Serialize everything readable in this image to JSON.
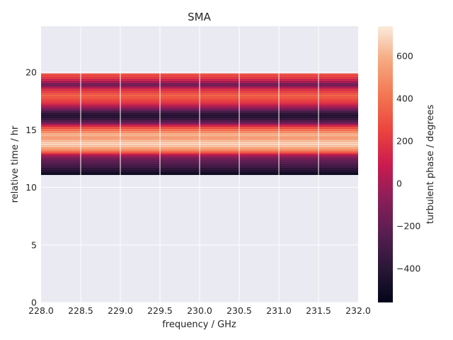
{
  "chart_data": {
    "type": "heatmap",
    "title": "SMA",
    "xlabel": "frequency / GHz",
    "ylabel": "relative time / hr",
    "colorbar_label": "turbulent phase / degrees",
    "xlim": [
      228.0,
      232.0
    ],
    "ylim": [
      0,
      24
    ],
    "x_ticks": [
      "228.0",
      "228.5",
      "229.0",
      "229.5",
      "230.0",
      "230.5",
      "231.0",
      "231.5",
      "232.0"
    ],
    "y_ticks": [
      "0",
      "5",
      "10",
      "15",
      "20"
    ],
    "colorbar_ticks": [
      "−400",
      "−200",
      "0",
      "200",
      "400",
      "600"
    ],
    "colorbar_range": [
      -560,
      740
    ],
    "grid": true,
    "data_time_range": [
      11.1,
      19.9
    ],
    "time_profile": [
      {
        "t": 11.1,
        "v": -540
      },
      {
        "t": 11.3,
        "v": -470
      },
      {
        "t": 11.6,
        "v": -380
      },
      {
        "t": 11.9,
        "v": -300
      },
      {
        "t": 12.2,
        "v": -230
      },
      {
        "t": 12.5,
        "v": -150
      },
      {
        "t": 12.8,
        "v": 0
      },
      {
        "t": 13.0,
        "v": 250
      },
      {
        "t": 13.2,
        "v": 450
      },
      {
        "t": 13.5,
        "v": 600
      },
      {
        "t": 13.8,
        "v": 700
      },
      {
        "t": 14.0,
        "v": 640
      },
      {
        "t": 14.3,
        "v": 520
      },
      {
        "t": 14.6,
        "v": 620
      },
      {
        "t": 14.9,
        "v": 450
      },
      {
        "t": 15.2,
        "v": 300
      },
      {
        "t": 15.4,
        "v": 100
      },
      {
        "t": 15.6,
        "v": -150
      },
      {
        "t": 15.9,
        "v": -320
      },
      {
        "t": 16.2,
        "v": -430
      },
      {
        "t": 16.5,
        "v": -350
      },
      {
        "t": 16.8,
        "v": -150
      },
      {
        "t": 17.1,
        "v": 50
      },
      {
        "t": 17.4,
        "v": 200
      },
      {
        "t": 17.7,
        "v": 280
      },
      {
        "t": 18.0,
        "v": 350
      },
      {
        "t": 18.3,
        "v": 250
      },
      {
        "t": 18.6,
        "v": 120
      },
      {
        "t": 18.9,
        "v": -180
      },
      {
        "t": 19.2,
        "v": 0
      },
      {
        "t": 19.5,
        "v": 200
      },
      {
        "t": 19.9,
        "v": 300
      }
    ],
    "colormap": "rocket",
    "plot_background": "#EAEAF2"
  }
}
